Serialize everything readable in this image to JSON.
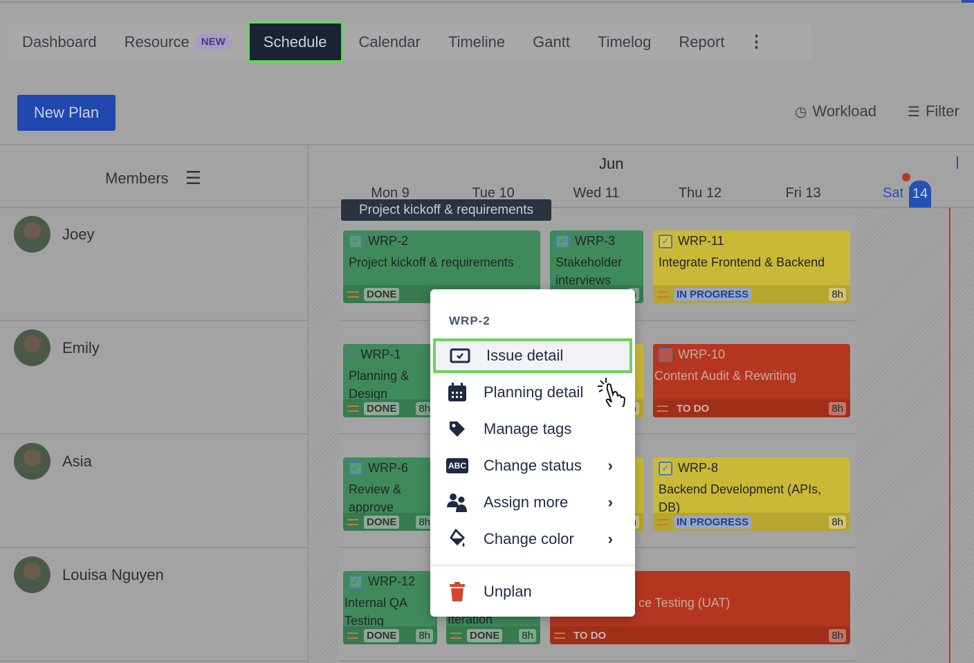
{
  "nav": {
    "tabs": [
      "Dashboard",
      "Resource",
      "Schedule",
      "Calendar",
      "Timeline",
      "Gantt",
      "Timelog",
      "Report"
    ],
    "resource_badge": "NEW",
    "active": "Schedule",
    "more_icon": "vertical-ellipsis"
  },
  "toolbar": {
    "new_plan": "New Plan",
    "workload": "Workload",
    "filter": "Filter"
  },
  "grid": {
    "members_label": "Members",
    "month": "Jun",
    "days": [
      "Mon 9",
      "Tue 10",
      "Wed 11",
      "Thu 12",
      "Fri 13",
      "Sat"
    ],
    "today_num": "14"
  },
  "members": [
    "Joey",
    "Emily",
    "Asia",
    "Louisa Nguyen"
  ],
  "tooltip": "Project kickoff & requirements",
  "cards": [
    {
      "key": "WRP-2",
      "title": "Project kickoff & requirements",
      "status": "DONE",
      "hours": ""
    },
    {
      "key": "WRP-3",
      "title": "Stakeholder interviews",
      "status": "",
      "hours": "h"
    },
    {
      "key": "WRP-11",
      "title": "Integrate Frontend & Backend",
      "status": "IN PROGRESS",
      "hours": "8h"
    },
    {
      "key": "WRP-1",
      "title": "Planning & Design",
      "status": "DONE",
      "hours": "8h"
    },
    {
      "key": "",
      "title": "",
      "status": "",
      "hours": "h"
    },
    {
      "key": "WRP-10",
      "title": "Content Audit & Rewriting",
      "status": "TO DO",
      "hours": "8h"
    },
    {
      "key": "WRP-6",
      "title": "Review & approve",
      "status": "DONE",
      "hours": "8h"
    },
    {
      "key": "",
      "title": "",
      "status": "",
      "hours": "h"
    },
    {
      "key": "WRP-8",
      "title": "Backend Development (APIs, DB)",
      "status": "IN PROGRESS",
      "hours": "8h"
    },
    {
      "key": "WRP-12",
      "title": "Internal QA Testing",
      "status": "DONE",
      "hours": "8h"
    },
    {
      "key": "",
      "title": "Iteration",
      "status": "DONE",
      "hours": "8h"
    },
    {
      "key": "",
      "title": "ce Testing (UAT)",
      "status": "TO DO",
      "hours": "8h"
    }
  ],
  "colors": {
    "done": "#3f8a5a",
    "in_progress": "#c9b936",
    "to_do": "#b4361f",
    "highlight": "#6bd35a"
  },
  "menu": {
    "header": "WRP-2",
    "items": [
      "Issue detail",
      "Planning detail",
      "Manage tags",
      "Change status",
      "Assign more",
      "Change color"
    ],
    "unplan": "Unplan",
    "status_icon_text": "ABC"
  }
}
